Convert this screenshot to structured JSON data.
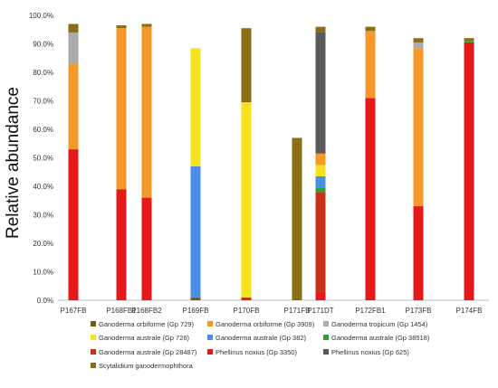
{
  "chart_data": {
    "type": "bar",
    "stacked": true,
    "title": "",
    "xlabel": "",
    "ylabel": "Relative abundance",
    "ylim": [
      0,
      100
    ],
    "yticks": [
      "0.0%",
      "10.0%",
      "20.0%",
      "30.0%",
      "40.0%",
      "50.0%",
      "60.0%",
      "70.0%",
      "80.0%",
      "90.0%",
      "100.0%"
    ],
    "grid": false,
    "legend_position": "bottom",
    "categories": [
      "P167FB",
      "P168FB1",
      "P168FB2",
      "P169FB",
      "P170FB",
      "P171FB",
      "P171DT",
      "P172FB1",
      "P173FB",
      "P174FB"
    ],
    "series": [
      {
        "name": "Ganoderma orbiforme (Gp 729)",
        "color": "#7a5a12",
        "values": [
          0,
          0,
          0,
          1,
          0,
          0,
          0,
          0,
          0,
          0
        ]
      },
      {
        "name": "Phellinus noxius (Gp 3350)",
        "color": "#e6181a",
        "values": [
          53,
          39,
          36,
          0,
          1,
          0,
          3,
          71,
          33,
          90.5
        ]
      },
      {
        "name": "Ganoderma australe (Gp 28487)",
        "color": "#c83216",
        "values": [
          0,
          0,
          0,
          0,
          0,
          0,
          35,
          0,
          0,
          0
        ]
      },
      {
        "name": "Ganoderma australe (Gp 38518)",
        "color": "#2ea23a",
        "values": [
          0,
          0,
          0,
          0,
          0,
          0,
          1.5,
          0,
          0,
          0.5
        ]
      },
      {
        "name": "Ganoderma australe (Gp 382)",
        "color": "#4a8ee6",
        "values": [
          0,
          0,
          0,
          46,
          0,
          0,
          4,
          0,
          0,
          0
        ]
      },
      {
        "name": "Ganoderma australe (Gp 726)",
        "color": "#f6e21e",
        "values": [
          0,
          0,
          0,
          41.5,
          68.5,
          0,
          4,
          0,
          0,
          0
        ]
      },
      {
        "name": "Ganoderma orbiforme (Gp 3909)",
        "color": "#f59a2a",
        "values": [
          30,
          56.5,
          60,
          0,
          0,
          0,
          4,
          23.5,
          55.5,
          0
        ]
      },
      {
        "name": "Ganoderma tropicum (Gp 1454)",
        "color": "#aaaaaa",
        "values": [
          11,
          0,
          0,
          0,
          0,
          0,
          0,
          0,
          2,
          0
        ]
      },
      {
        "name": "Phellinus noxius (Gp 625)",
        "color": "#5a5a5a",
        "values": [
          0,
          0,
          0,
          0,
          0,
          0,
          42.5,
          0,
          0,
          0
        ]
      },
      {
        "name": "Scytalidium ganodermophthora",
        "color": "#8a6d14",
        "values": [
          3,
          1,
          1,
          0,
          26,
          57,
          2,
          1.5,
          1.5,
          1
        ]
      }
    ],
    "legend_rows": [
      [
        "Ganoderma orbiforme (Gp 729)",
        "Ganoderma orbiforme (Gp 3909)",
        "Ganoderma tropicum (Gp 1454)"
      ],
      [
        "Ganoderma australe (Gp 726)",
        "Ganoderma australe (Gp 382)",
        "Ganoderma australe (Gp 38518)"
      ],
      [
        "Ganoderma australe (Gp 28487)",
        "Phellinus noxius (Gp 3350)",
        "Phellinus noxius (Gp 625)"
      ],
      [
        "Scytalidium ganodermophthora"
      ]
    ]
  }
}
